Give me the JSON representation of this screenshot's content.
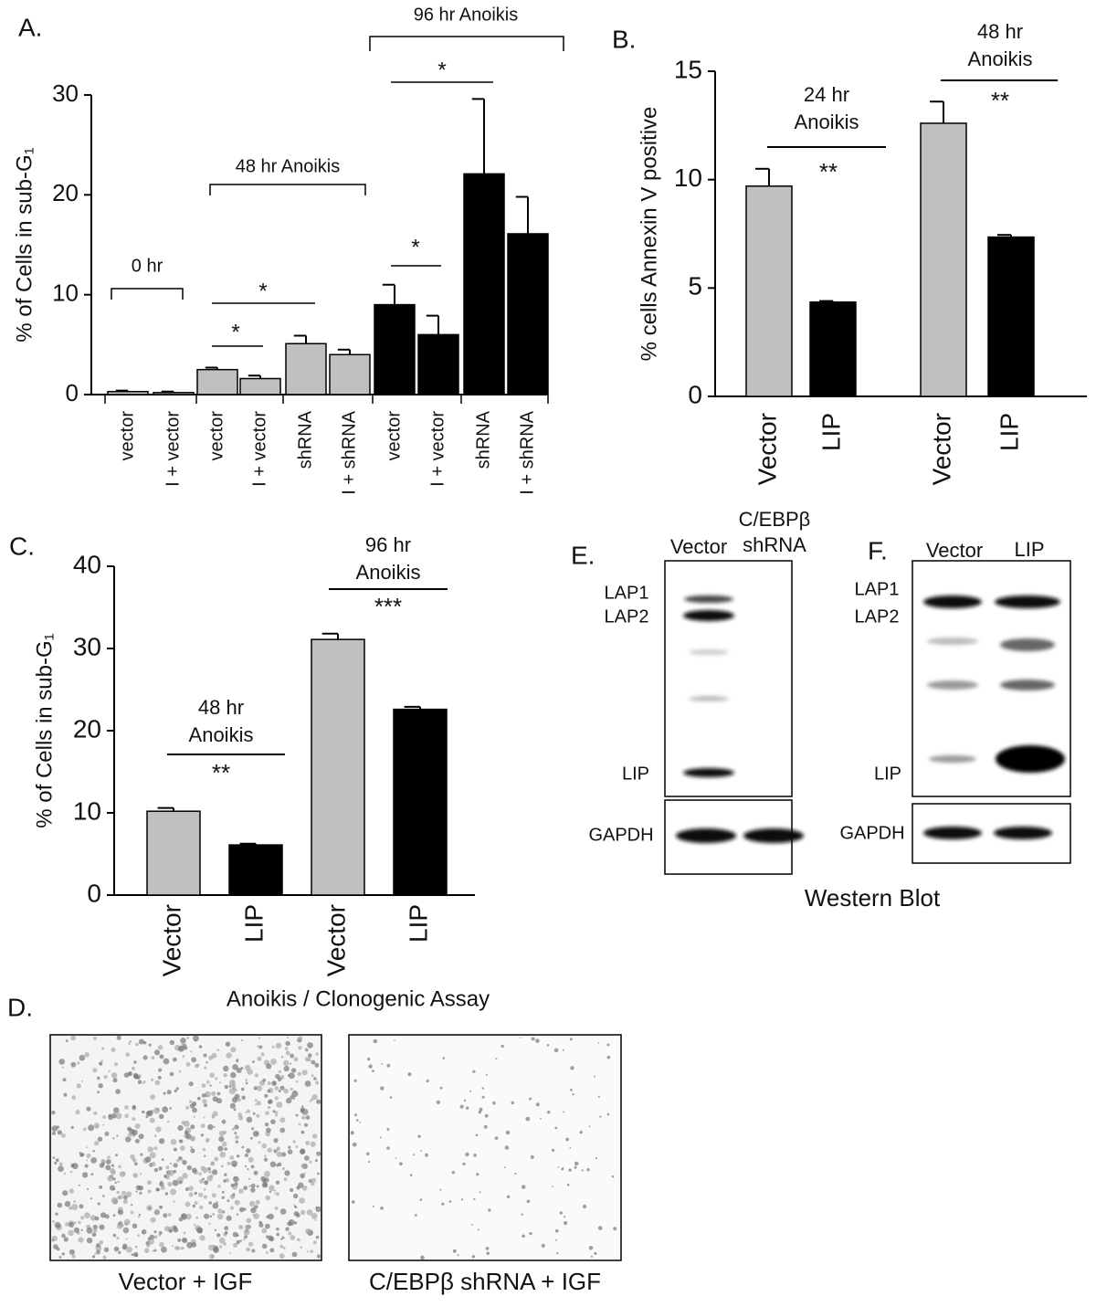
{
  "chart_data": [
    {
      "type": "bar",
      "panel_label": "A.",
      "y_label": "% of Cells in sub-G₁",
      "categories": [
        "vector",
        "I + vector",
        "vector",
        "I + vector",
        "shRNA",
        "I + shRNA",
        "vector",
        "I + vector",
        "shRNA",
        "I + shRNA"
      ],
      "values": [
        0.3,
        0.2,
        2.5,
        1.6,
        5.1,
        4.0,
        9.0,
        6.0,
        22.1,
        16.1
      ],
      "errors": [
        0.1,
        0.1,
        0.2,
        0.3,
        0.8,
        0.5,
        2.0,
        1.9,
        7.5,
        3.7
      ],
      "colors": [
        "#c4c4c4",
        "#c4c4c4",
        "#c0c0c0",
        "#c0c0c0",
        "#c0c0c0",
        "#c0c0c0",
        "#000000",
        "#000000",
        "#000000",
        "#000000"
      ],
      "ylim": [
        0,
        30
      ],
      "yticks": [
        0,
        10,
        20,
        30
      ],
      "group_labels": [
        "0 hr",
        "48 hr Anoikis",
        "96 hr Anoikis"
      ],
      "significance": [
        "*",
        "*",
        "*",
        "*"
      ]
    },
    {
      "type": "bar",
      "panel_label": "B.",
      "y_label": "% cells Annexin V positive",
      "categories": [
        "Vector",
        "LIP",
        "Vector",
        "LIP"
      ],
      "values": [
        9.7,
        4.35,
        12.6,
        7.35
      ],
      "errors": [
        0.8,
        0.05,
        1.0,
        0.1
      ],
      "colors": [
        "#c0c0c0",
        "#000000",
        "#c0c0c0",
        "#000000"
      ],
      "ylim": [
        0,
        15
      ],
      "yticks": [
        0,
        5,
        10,
        15
      ],
      "group_labels": [
        [
          "24 hr",
          "Anoikis"
        ],
        [
          "48 hr",
          "Anoikis"
        ]
      ],
      "significance": [
        "**",
        "**"
      ]
    },
    {
      "type": "bar",
      "panel_label": "C.",
      "y_label": "% of Cells in sub-G₁",
      "x_label": "Anoikis / Clonogenic Assay",
      "categories": [
        "Vector",
        "LIP",
        "Vector",
        "LIP"
      ],
      "values": [
        10.2,
        6.1,
        31.1,
        22.6
      ],
      "errors": [
        0.4,
        0.15,
        0.7,
        0.3
      ],
      "colors": [
        "#c0c0c0",
        "#000000",
        "#c0c0c0",
        "#000000"
      ],
      "ylim": [
        0,
        40
      ],
      "yticks": [
        0,
        10,
        20,
        30,
        40
      ],
      "group_labels": [
        [
          "48 hr",
          "Anoikis"
        ],
        [
          "96 hr",
          "Anoikis"
        ]
      ],
      "significance": [
        "**",
        "***"
      ]
    }
  ],
  "blots": {
    "title": "Western Blot",
    "e": {
      "panel_label": "E.",
      "lanes": [
        "Vector",
        [
          "C/EBPβ",
          "shRNA"
        ]
      ],
      "bands": [
        "LAP1",
        "LAP2",
        "LIP",
        "GAPDH"
      ]
    },
    "f": {
      "panel_label": "F.",
      "lanes": [
        "Vector",
        "LIP"
      ],
      "bands": [
        "LAP1",
        "LAP2",
        "LIP",
        "GAPDH"
      ]
    }
  },
  "micrographs": {
    "panel_label": "D.",
    "captions": [
      "Vector + IGF",
      "C/EBPβ shRNA + IGF"
    ]
  }
}
